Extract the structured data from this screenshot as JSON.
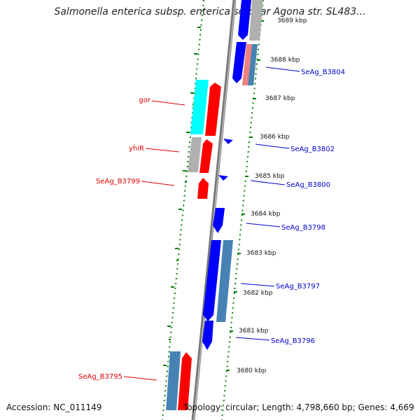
{
  "title": "Salmonella enterica subsp. enterica serovar Agona str. SL483...",
  "accession": "Accession: NC_011149",
  "topology": "Topology: circular; Length: 4,798,660 bp; Genes: 4,669",
  "colors": {
    "forward_cds": "#0000ff",
    "forward_cds_alt": "#4682b4",
    "reverse_cds": "#ff0000",
    "reverse_cds_alt": "#00ffff",
    "other_feature": "#b0b0b0",
    "backbone": "#808080",
    "tick": "#008000",
    "label_forward": "#0000cc",
    "label_reverse": "#dd0000"
  },
  "ticks": [
    "3689 kbp",
    "3688 kbp",
    "3687 kbp",
    "3686 kbp",
    "3685 kbp",
    "3684 kbp",
    "3683 kbp",
    "3682 kbp",
    "3681 kbp",
    "3680 kbp"
  ],
  "gene_labels": {
    "forward": [
      "SeAg_B3804",
      "SeAg_B3802",
      "SeAg_B3800",
      "SeAg_B3798",
      "SeAg_B3797",
      "SeAg_B3796"
    ],
    "reverse": [
      "gor",
      "yhiR",
      "SeAg_B3799",
      "SeAg_B3795"
    ]
  }
}
